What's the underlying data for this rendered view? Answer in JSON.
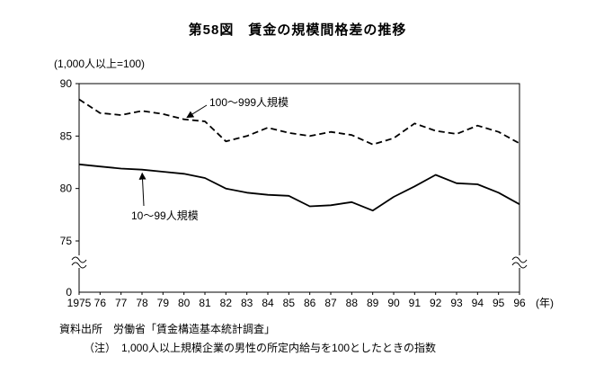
{
  "title": "第58図　賃金の規模間格差の推移",
  "unit_note": "(1,000人以上=100)",
  "chart_data": {
    "type": "line",
    "x_tick_labels": [
      "1975",
      "76",
      "77",
      "78",
      "79",
      "80",
      "81",
      "82",
      "83",
      "84",
      "85",
      "86",
      "87",
      "88",
      "89",
      "90",
      "91",
      "92",
      "93",
      "94",
      "95",
      "96"
    ],
    "x_axis_suffix": "(年)",
    "yticks": [
      90,
      85,
      80,
      75,
      0
    ],
    "ylim": [
      75,
      90
    ],
    "axis_break_between": [
      0,
      75
    ],
    "grid": false,
    "legend_position": "inline-annotations",
    "line_color": "#000000",
    "series": [
      {
        "name": "100〜999人規模",
        "style": "dashed",
        "values": [
          88.5,
          87.2,
          87.0,
          87.4,
          87.1,
          86.6,
          86.4,
          84.5,
          85.0,
          85.8,
          85.3,
          85.0,
          85.4,
          85.1,
          84.2,
          84.8,
          86.2,
          85.5,
          85.2,
          86.0,
          85.4,
          84.3
        ]
      },
      {
        "name": "10〜99人規模",
        "style": "solid",
        "values": [
          82.3,
          82.1,
          81.9,
          81.8,
          81.6,
          81.4,
          81.0,
          80.0,
          79.6,
          79.4,
          79.3,
          78.3,
          78.4,
          78.7,
          77.9,
          79.2,
          80.2,
          81.3,
          80.5,
          80.4,
          79.6,
          78.5
        ]
      }
    ],
    "annotations": [
      {
        "label": "100〜999人規模",
        "series": 0,
        "year": "80"
      },
      {
        "label": "10〜99人規模",
        "series": 1,
        "year": "78"
      }
    ]
  },
  "footer": {
    "source": "資料出所　労働省「賃金構造基本統計調査」",
    "note": "（注）　1,000人以上規模企業の男性の所定内給与を100としたときの指数"
  }
}
